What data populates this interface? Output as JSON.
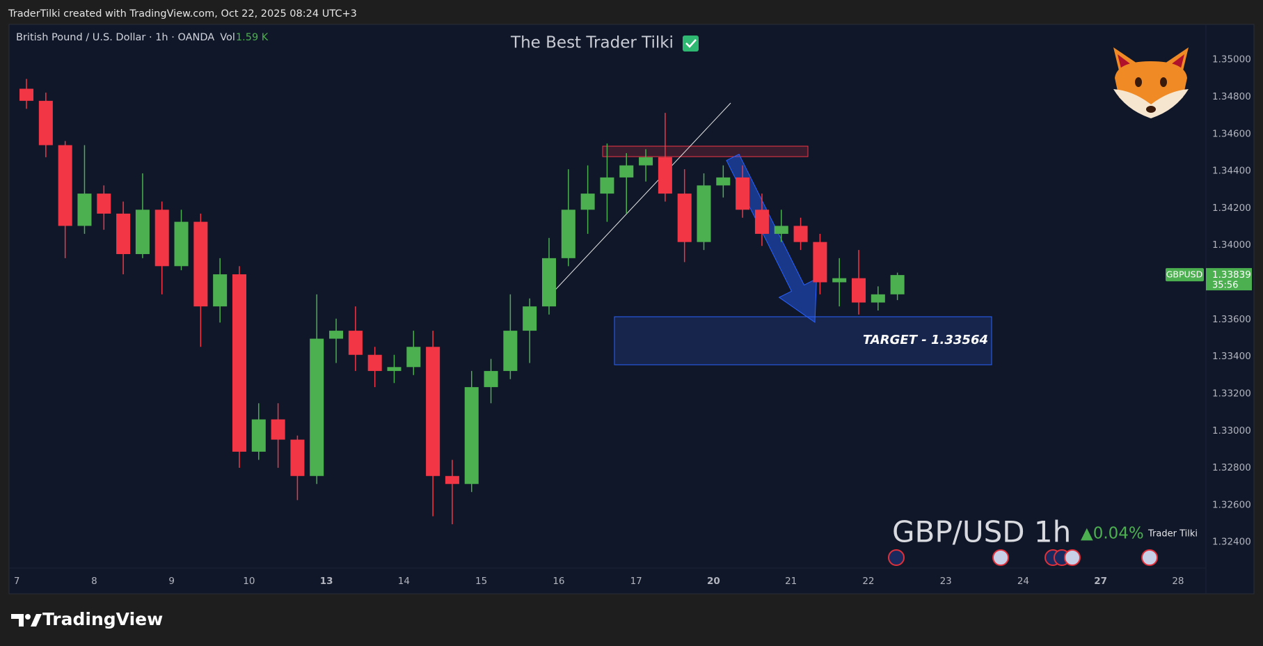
{
  "header": {
    "caption": "TraderTilki created with TradingView.com, Oct 22, 2025 08:24 UTC+3"
  },
  "footer": {
    "logo": "TradingView"
  },
  "chart_data": {
    "type": "candlestick",
    "title": "The Best Trader Tilki",
    "legend": {
      "symbol": "British Pound / U.S. Dollar · 1h · OANDA",
      "volume_label": "Vol",
      "volume": "1.59 K"
    },
    "symbol_label": "GBPUSD",
    "countdown": "35:56",
    "watermark": "GBP/USD 1h",
    "change": "▲0.04%",
    "author": "Trader Tilki",
    "annotations": [
      {
        "text": "TARGET - 1.33564"
      }
    ],
    "up_color": "#4caf50",
    "down_color": "#f23645",
    "grid": false,
    "x": [
      0.125,
      0.375,
      0.625,
      0.875,
      1.125,
      1.375,
      1.625,
      1.875,
      2.125,
      2.375,
      2.625,
      2.875,
      3.125,
      3.375,
      3.625,
      3.875,
      4.125,
      4.375,
      4.625,
      4.875,
      5.125,
      5.375,
      5.625,
      5.875,
      6.125,
      6.375,
      6.625,
      6.875,
      7.125,
      7.375,
      7.625,
      7.875,
      8.125,
      8.375,
      8.625,
      8.875,
      9.125,
      9.375,
      9.625,
      9.875,
      10.125,
      10.375,
      10.625,
      10.875,
      11.125,
      11.375
    ],
    "open": [
      1.34843,
      1.34778,
      1.34539,
      1.34104,
      1.34278,
      1.3417,
      1.33952,
      1.34191,
      1.33887,
      1.34126,
      1.3367,
      1.33843,
      1.32887,
      1.33061,
      1.32952,
      1.32756,
      1.33496,
      1.33539,
      1.33409,
      1.33322,
      1.33343,
      1.33452,
      1.32756,
      1.32713,
      1.33235,
      1.33322,
      1.33539,
      1.3367,
      1.3393,
      1.34191,
      1.34278,
      1.34365,
      1.3443,
      1.34474,
      1.34278,
      1.34017,
      1.34322,
      1.34365,
      1.34191,
      1.34061,
      1.34104,
      1.34017,
      1.338,
      1.33822,
      1.33691,
      1.33735
    ],
    "high": [
      1.34896,
      1.34822,
      1.34561,
      1.34539,
      1.34322,
      1.34235,
      1.34387,
      1.34235,
      1.34191,
      1.3417,
      1.3393,
      1.33887,
      1.33148,
      1.33148,
      1.32974,
      1.33735,
      1.33604,
      1.3367,
      1.33452,
      1.33409,
      1.33539,
      1.33539,
      1.32843,
      1.33322,
      1.33387,
      1.33735,
      1.33713,
      1.34039,
      1.34409,
      1.3443,
      1.34548,
      1.34496,
      1.34517,
      1.34713,
      1.34409,
      1.34387,
      1.3443,
      1.3443,
      1.34278,
      1.34191,
      1.34148,
      1.34061,
      1.3393,
      1.33974,
      1.33778,
      1.33852
    ],
    "low": [
      1.34735,
      1.34474,
      1.3393,
      1.34061,
      1.34083,
      1.33843,
      1.3393,
      1.33735,
      1.33865,
      1.33452,
      1.33583,
      1.328,
      1.32843,
      1.328,
      1.32626,
      1.32713,
      1.33365,
      1.33322,
      1.33235,
      1.33257,
      1.333,
      1.32539,
      1.32496,
      1.3267,
      1.33148,
      1.33278,
      1.33365,
      1.33626,
      1.33887,
      1.34061,
      1.34126,
      1.3417,
      1.34343,
      1.34235,
      1.33909,
      1.33974,
      1.34257,
      1.34148,
      1.33996,
      1.34017,
      1.33974,
      1.33735,
      1.3367,
      1.33626,
      1.33648,
      1.33704
    ],
    "close": [
      1.34778,
      1.34539,
      1.34104,
      1.34278,
      1.3417,
      1.33952,
      1.34191,
      1.33887,
      1.34126,
      1.3367,
      1.33843,
      1.32887,
      1.33061,
      1.32952,
      1.32756,
      1.33496,
      1.33539,
      1.33409,
      1.33322,
      1.33343,
      1.33452,
      1.32756,
      1.32713,
      1.33235,
      1.33322,
      1.33539,
      1.3367,
      1.3393,
      1.34191,
      1.34278,
      1.34365,
      1.3443,
      1.34474,
      1.34278,
      1.34017,
      1.34322,
      1.34365,
      1.34191,
      1.34061,
      1.34104,
      1.34017,
      1.338,
      1.33822,
      1.33691,
      1.33735,
      1.33839
    ],
    "xlim": [
      -0.1,
      15.36
    ],
    "xticks": [
      {
        "value": 0,
        "label": "7"
      },
      {
        "value": 1,
        "label": "8"
      },
      {
        "value": 2,
        "label": "9"
      },
      {
        "value": 3,
        "label": "10"
      },
      {
        "value": 4,
        "label": "13",
        "bold": true
      },
      {
        "value": 5,
        "label": "14"
      },
      {
        "value": 6,
        "label": "15"
      },
      {
        "value": 7,
        "label": "16"
      },
      {
        "value": 8,
        "label": "17"
      },
      {
        "value": 9,
        "label": "20",
        "bold": true
      },
      {
        "value": 10,
        "label": "21"
      },
      {
        "value": 11,
        "label": "22"
      },
      {
        "value": 12,
        "label": "23"
      },
      {
        "value": 13,
        "label": "24"
      },
      {
        "value": 14,
        "label": "27",
        "bold": true
      },
      {
        "value": 15,
        "label": "28"
      }
    ],
    "ylim": [
      1.3226,
      1.3519
    ],
    "yticks": [
      {
        "value": 1.324,
        "label": "1.32400"
      },
      {
        "value": 1.326,
        "label": "1.32600"
      },
      {
        "value": 1.328,
        "label": "1.32800"
      },
      {
        "value": 1.33,
        "label": "1.33000"
      },
      {
        "value": 1.332,
        "label": "1.33200"
      },
      {
        "value": 1.334,
        "label": "1.33400"
      },
      {
        "value": 1.336,
        "label": "1.33600"
      },
      {
        "value": 1.338,
        "label": "1.33800"
      },
      {
        "value": 1.34,
        "label": "1.34000"
      },
      {
        "value": 1.342,
        "label": "1.34200"
      },
      {
        "value": 1.344,
        "label": "1.34400"
      },
      {
        "value": 1.346,
        "label": "1.34600"
      },
      {
        "value": 1.348,
        "label": "1.34800"
      },
      {
        "value": 1.35,
        "label": "1.35000"
      }
    ]
  }
}
